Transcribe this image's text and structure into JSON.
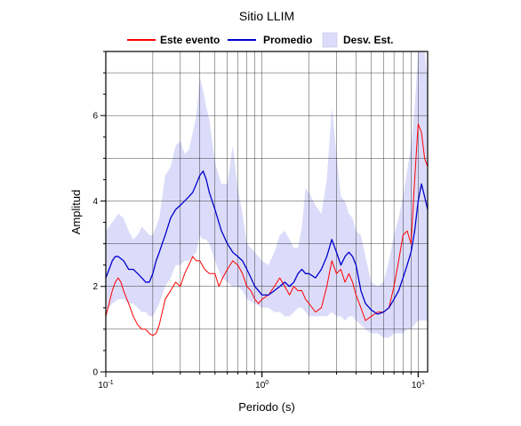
{
  "chart_data": {
    "type": "line",
    "title": "Sitio LLIM",
    "xlabel": "Periodo (s)",
    "ylabel": "Amplitud",
    "xscale": "log",
    "xlim": [
      0.1,
      11.5
    ],
    "ylim": [
      0,
      7.5
    ],
    "x_ticks": [
      {
        "value": 0.1,
        "base": "10",
        "exp": "-1"
      },
      {
        "value": 1,
        "base": "10",
        "exp": "0"
      },
      {
        "value": 10,
        "base": "10",
        "exp": "1"
      }
    ],
    "y_ticks": [
      {
        "value": 0,
        "label": "0"
      },
      {
        "value": 2,
        "label": "2"
      },
      {
        "value": 4,
        "label": "4"
      },
      {
        "value": 6,
        "label": "6"
      }
    ],
    "grid": true,
    "legend_position": "top",
    "legend": [
      {
        "label": "Este evento",
        "kind": "line",
        "color": "#ff0000"
      },
      {
        "label": "Promedio",
        "kind": "line",
        "color": "#0000cc"
      },
      {
        "label": "Desv. Est.",
        "kind": "band",
        "color": "#dcdcfa"
      }
    ],
    "series": [
      {
        "name": "Este evento",
        "color": "#ff0000",
        "x": [
          0.1,
          0.105,
          0.11,
          0.115,
          0.12,
          0.125,
          0.13,
          0.14,
          0.15,
          0.16,
          0.17,
          0.18,
          0.19,
          0.2,
          0.21,
          0.22,
          0.24,
          0.26,
          0.28,
          0.3,
          0.32,
          0.34,
          0.36,
          0.38,
          0.4,
          0.43,
          0.46,
          0.5,
          0.53,
          0.56,
          0.6,
          0.65,
          0.7,
          0.75,
          0.8,
          0.85,
          0.9,
          0.95,
          1.0,
          1.1,
          1.2,
          1.3,
          1.4,
          1.5,
          1.6,
          1.7,
          1.8,
          1.9,
          2.0,
          2.2,
          2.4,
          2.6,
          2.8,
          3.0,
          3.2,
          3.4,
          3.6,
          3.8,
          4.0,
          4.3,
          4.6,
          5.0,
          5.5,
          6.0,
          6.5,
          7.0,
          7.5,
          8.0,
          8.5,
          9.0,
          9.5,
          10.0,
          10.5,
          11.0,
          11.5
        ],
        "y": [
          1.3,
          1.6,
          1.9,
          2.1,
          2.2,
          2.1,
          1.9,
          1.6,
          1.3,
          1.1,
          1.0,
          1.0,
          0.9,
          0.85,
          0.9,
          1.1,
          1.7,
          1.9,
          2.1,
          2.0,
          2.3,
          2.5,
          2.7,
          2.6,
          2.6,
          2.4,
          2.3,
          2.3,
          2.0,
          2.2,
          2.4,
          2.6,
          2.5,
          2.3,
          2.0,
          1.9,
          1.7,
          1.6,
          1.7,
          1.8,
          2.0,
          2.2,
          2.0,
          1.8,
          2.0,
          1.9,
          1.9,
          1.7,
          1.6,
          1.4,
          1.5,
          2.0,
          2.6,
          2.3,
          2.4,
          2.1,
          2.3,
          2.1,
          1.8,
          1.5,
          1.2,
          1.3,
          1.4,
          1.4,
          1.5,
          2.0,
          2.6,
          3.2,
          3.3,
          3.0,
          4.5,
          5.8,
          5.6,
          5.0,
          4.8
        ]
      },
      {
        "name": "Promedio",
        "color": "#0000cc",
        "x": [
          0.1,
          0.105,
          0.11,
          0.115,
          0.12,
          0.13,
          0.14,
          0.15,
          0.16,
          0.17,
          0.18,
          0.19,
          0.2,
          0.21,
          0.22,
          0.24,
          0.26,
          0.28,
          0.3,
          0.32,
          0.34,
          0.36,
          0.38,
          0.4,
          0.42,
          0.44,
          0.46,
          0.5,
          0.55,
          0.6,
          0.65,
          0.7,
          0.75,
          0.8,
          0.85,
          0.9,
          0.95,
          1.0,
          1.1,
          1.2,
          1.3,
          1.4,
          1.5,
          1.6,
          1.7,
          1.8,
          1.9,
          2.0,
          2.2,
          2.4,
          2.6,
          2.8,
          3.0,
          3.2,
          3.4,
          3.6,
          3.8,
          4.0,
          4.3,
          4.6,
          5.0,
          5.5,
          6.0,
          6.5,
          7.0,
          7.5,
          8.0,
          8.5,
          9.0,
          9.5,
          10.0,
          10.5,
          11.0,
          11.5
        ],
        "y": [
          2.2,
          2.4,
          2.6,
          2.7,
          2.7,
          2.6,
          2.4,
          2.4,
          2.3,
          2.2,
          2.1,
          2.1,
          2.3,
          2.6,
          2.8,
          3.2,
          3.6,
          3.8,
          3.9,
          4.0,
          4.1,
          4.2,
          4.4,
          4.6,
          4.7,
          4.5,
          4.2,
          3.8,
          3.3,
          3.0,
          2.8,
          2.7,
          2.6,
          2.4,
          2.2,
          2.0,
          1.9,
          1.8,
          1.8,
          1.9,
          2.0,
          2.1,
          2.0,
          2.1,
          2.3,
          2.4,
          2.3,
          2.3,
          2.2,
          2.4,
          2.7,
          3.1,
          2.8,
          2.5,
          2.7,
          2.8,
          2.7,
          2.5,
          1.9,
          1.6,
          1.45,
          1.35,
          1.4,
          1.5,
          1.7,
          1.9,
          2.2,
          2.5,
          2.8,
          3.3,
          4.0,
          4.4,
          4.1,
          3.8
        ]
      }
    ],
    "std_band": {
      "name": "Desv. Est.",
      "color": "#dcdcfa",
      "x": [
        0.1,
        0.11,
        0.12,
        0.13,
        0.14,
        0.15,
        0.16,
        0.17,
        0.18,
        0.19,
        0.2,
        0.22,
        0.24,
        0.26,
        0.28,
        0.3,
        0.32,
        0.34,
        0.36,
        0.38,
        0.4,
        0.42,
        0.44,
        0.46,
        0.5,
        0.55,
        0.6,
        0.65,
        0.7,
        0.75,
        0.8,
        0.9,
        1.0,
        1.1,
        1.2,
        1.3,
        1.4,
        1.5,
        1.6,
        1.7,
        1.8,
        1.9,
        2.0,
        2.2,
        2.4,
        2.6,
        2.8,
        3.0,
        3.2,
        3.4,
        3.6,
        3.8,
        4.0,
        4.3,
        4.6,
        5.0,
        5.5,
        6.0,
        6.5,
        7.0,
        7.5,
        8.0,
        8.5,
        9.0,
        9.5,
        10.0,
        10.5,
        11.0,
        11.5
      ],
      "upper": [
        3.3,
        3.5,
        3.7,
        3.6,
        3.3,
        3.1,
        3.2,
        3.4,
        3.3,
        3.2,
        3.2,
        3.6,
        4.6,
        4.8,
        5.3,
        5.4,
        5.1,
        5.2,
        5.6,
        6.0,
        6.9,
        6.6,
        6.2,
        5.9,
        4.9,
        4.4,
        4.4,
        5.3,
        4.3,
        3.7,
        3.0,
        2.8,
        2.6,
        2.5,
        2.8,
        3.2,
        3.3,
        3.1,
        2.9,
        2.9,
        3.4,
        4.3,
        4.2,
        3.9,
        3.7,
        4.5,
        6.2,
        5.1,
        4.1,
        4.0,
        3.7,
        3.6,
        3.3,
        3.2,
        2.7,
        2.1,
        2.0,
        2.1,
        2.6,
        3.2,
        3.6,
        4.1,
        4.7,
        5.3,
        6.2,
        7.5,
        7.5,
        7.5,
        6.8
      ],
      "lower": [
        1.4,
        1.6,
        1.7,
        1.7,
        1.6,
        1.6,
        1.5,
        1.4,
        1.4,
        1.3,
        1.3,
        1.6,
        2.0,
        2.2,
        2.5,
        2.5,
        2.6,
        2.6,
        2.7,
        2.8,
        3.2,
        3.1,
        3.1,
        3.0,
        2.6,
        2.2,
        2.1,
        2.0,
        2.0,
        1.9,
        1.7,
        1.6,
        1.5,
        1.5,
        1.4,
        1.4,
        1.3,
        1.3,
        1.4,
        1.5,
        1.5,
        1.4,
        1.3,
        1.3,
        1.3,
        1.3,
        1.4,
        1.3,
        1.3,
        1.2,
        1.3,
        1.3,
        1.2,
        1.1,
        1.0,
        0.9,
        0.9,
        0.8,
        0.8,
        0.9,
        0.9,
        0.9,
        1.0,
        1.0,
        1.1,
        1.2,
        1.2,
        1.2,
        1.2
      ]
    }
  }
}
